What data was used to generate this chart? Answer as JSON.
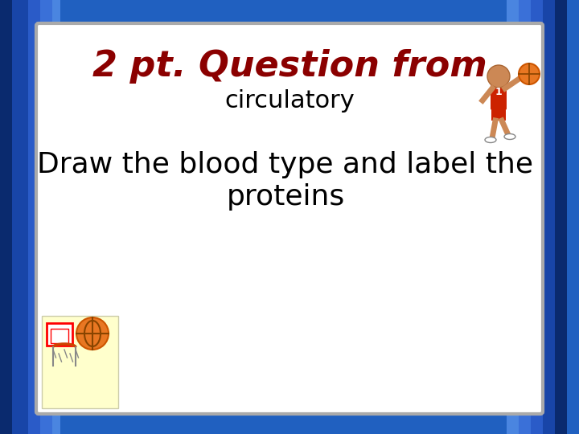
{
  "title_line1": "2 pt. Question from",
  "title_line2": "circulatory",
  "body_text_line1": "Draw the blood type and label the",
  "body_text_line2": "proteins",
  "title_color": "#8B0000",
  "title_fontsize": 32,
  "subtitle_fontsize": 22,
  "body_fontsize": 26,
  "body_color": "#000000",
  "subtitle_color": "#000000",
  "bg_blue": "#2060c0",
  "bg_white": "#ffffff",
  "border_color": "#aaaaaa",
  "stripe_colors": [
    "#1040a0",
    "#2060c0",
    "#4080d0",
    "#2060c0",
    "#1040a0"
  ]
}
